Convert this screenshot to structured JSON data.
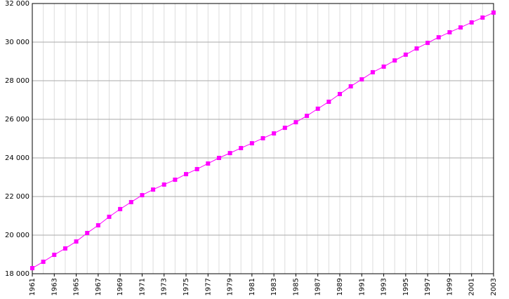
{
  "chart_data": {
    "type": "line",
    "color": "#ff00ff",
    "grid": true,
    "x": [
      1961,
      1962,
      1963,
      1964,
      1965,
      1966,
      1967,
      1968,
      1969,
      1970,
      1971,
      1972,
      1973,
      1974,
      1975,
      1976,
      1977,
      1978,
      1979,
      1980,
      1981,
      1982,
      1983,
      1984,
      1985,
      1986,
      1987,
      1988,
      1989,
      1990,
      1991,
      1992,
      1993,
      1994,
      1995,
      1996,
      1997,
      1998,
      1999,
      2000,
      2001,
      2002,
      2003
    ],
    "values": [
      18290,
      18620,
      18980,
      19310,
      19670,
      20110,
      20510,
      20950,
      21350,
      21710,
      22070,
      22360,
      22620,
      22870,
      23160,
      23420,
      23710,
      24000,
      24250,
      24510,
      24760,
      25020,
      25270,
      25560,
      25850,
      26180,
      26550,
      26910,
      27310,
      27710,
      28070,
      28440,
      28730,
      29050,
      29350,
      29670,
      29960,
      30250,
      30510,
      30760,
      31020,
      31270,
      31530
    ],
    "xlim": [
      1961,
      2003
    ],
    "xticks": [
      1961,
      1963,
      1965,
      1967,
      1969,
      1971,
      1973,
      1975,
      1977,
      1979,
      1981,
      1983,
      1985,
      1987,
      1989,
      1991,
      1993,
      1995,
      1997,
      1999,
      2001,
      2003
    ],
    "ylim": [
      18000,
      32000
    ],
    "yticks": [
      {
        "value": 18000,
        "label": "18 000"
      },
      {
        "value": 20000,
        "label": "20 000"
      },
      {
        "value": 22000,
        "label": "22 000"
      },
      {
        "value": 24000,
        "label": "24 000"
      },
      {
        "value": 26000,
        "label": "26 000"
      },
      {
        "value": 28000,
        "label": "28 000"
      },
      {
        "value": 30000,
        "label": "30 000"
      },
      {
        "value": 32000,
        "label": "32 000"
      }
    ]
  }
}
